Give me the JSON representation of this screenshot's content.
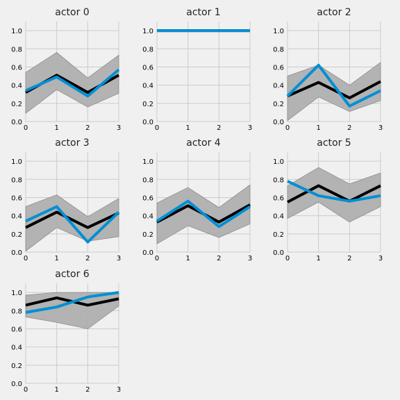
{
  "colors": {
    "background": "#f0f0f0",
    "mean_line": "#000000",
    "band": "#b0b0b0",
    "actual_line": "#008fd5",
    "grid": "#cbcbcb",
    "tick_text": "#000000"
  },
  "chart_data": [
    {
      "type": "line",
      "title": "actor 0",
      "x": [
        0,
        1,
        2,
        3
      ],
      "ylim": [
        0,
        1.1
      ],
      "xticks": [
        "0",
        "1",
        "2",
        "3"
      ],
      "yticks": [
        "0.0",
        "0.2",
        "0.4",
        "0.6",
        "0.8",
        "1.0"
      ],
      "grid": true,
      "band": {
        "lower": [
          0.09,
          0.35,
          0.16,
          0.31
        ],
        "upper": [
          0.54,
          0.76,
          0.48,
          0.73
        ]
      },
      "series": [
        {
          "role": "mean",
          "color": "#000000",
          "values": [
            0.32,
            0.51,
            0.32,
            0.51
          ]
        },
        {
          "role": "actual",
          "color": "#008fd5",
          "values": [
            0.34,
            0.49,
            0.28,
            0.57
          ]
        }
      ]
    },
    {
      "type": "line",
      "title": "actor 1",
      "x": [
        0,
        1,
        2,
        3
      ],
      "ylim": [
        0,
        1.1
      ],
      "xticks": [
        "0",
        "1",
        "2",
        "3"
      ],
      "yticks": [
        "0.0",
        "0.2",
        "0.4",
        "0.6",
        "0.8",
        "1.0"
      ],
      "grid": true,
      "band": {
        "lower": [
          1.0,
          1.0,
          1.0,
          1.0
        ],
        "upper": [
          1.0,
          1.0,
          1.0,
          1.0
        ]
      },
      "series": [
        {
          "role": "mean",
          "color": "#000000",
          "values": [
            1.0,
            1.0,
            1.0,
            1.0
          ]
        },
        {
          "role": "actual",
          "color": "#008fd5",
          "values": [
            1.0,
            1.0,
            1.0,
            1.0
          ]
        }
      ]
    },
    {
      "type": "line",
      "title": "actor 2",
      "x": [
        0,
        1,
        2,
        3
      ],
      "ylim": [
        0,
        1.1
      ],
      "xticks": [
        "0",
        "1",
        "2",
        "3"
      ],
      "yticks": [
        "0.0",
        "0.2",
        "0.4",
        "0.6",
        "0.8",
        "1.0"
      ],
      "grid": true,
      "band": {
        "lower": [
          0.01,
          0.27,
          0.11,
          0.23
        ],
        "upper": [
          0.5,
          0.62,
          0.4,
          0.65
        ]
      },
      "series": [
        {
          "role": "mean",
          "color": "#000000",
          "values": [
            0.28,
            0.43,
            0.26,
            0.44
          ]
        },
        {
          "role": "actual",
          "color": "#008fd5",
          "values": [
            0.28,
            0.62,
            0.17,
            0.34
          ]
        }
      ]
    },
    {
      "type": "line",
      "title": "actor 3",
      "x": [
        0,
        1,
        2,
        3
      ],
      "ylim": [
        0,
        1.1
      ],
      "xticks": [
        "0",
        "1",
        "2",
        "3"
      ],
      "yticks": [
        "0.0",
        "0.2",
        "0.4",
        "0.6",
        "0.8",
        "1.0"
      ],
      "grid": true,
      "band": {
        "lower": [
          0.01,
          0.27,
          0.12,
          0.17
        ],
        "upper": [
          0.5,
          0.63,
          0.39,
          0.59
        ]
      },
      "series": [
        {
          "role": "mean",
          "color": "#000000",
          "values": [
            0.27,
            0.44,
            0.27,
            0.43
          ]
        },
        {
          "role": "actual",
          "color": "#008fd5",
          "values": [
            0.34,
            0.5,
            0.11,
            0.44
          ]
        }
      ]
    },
    {
      "type": "line",
      "title": "actor 4",
      "x": [
        0,
        1,
        2,
        3
      ],
      "ylim": [
        0,
        1.1
      ],
      "xticks": [
        "0",
        "1",
        "2",
        "3"
      ],
      "yticks": [
        "0.0",
        "0.2",
        "0.4",
        "0.6",
        "0.8",
        "1.0"
      ],
      "grid": true,
      "band": {
        "lower": [
          0.09,
          0.29,
          0.16,
          0.31
        ],
        "upper": [
          0.54,
          0.71,
          0.49,
          0.74
        ]
      },
      "series": [
        {
          "role": "mean",
          "color": "#000000",
          "values": [
            0.33,
            0.51,
            0.33,
            0.52
          ]
        },
        {
          "role": "actual",
          "color": "#008fd5",
          "values": [
            0.34,
            0.56,
            0.28,
            0.5
          ]
        }
      ]
    },
    {
      "type": "line",
      "title": "actor 5",
      "x": [
        0,
        1,
        2,
        3
      ],
      "ylim": [
        0,
        1.1
      ],
      "xticks": [
        "0",
        "1",
        "2",
        "3"
      ],
      "yticks": [
        "0.0",
        "0.2",
        "0.4",
        "0.6",
        "0.8",
        "1.0"
      ],
      "grid": true,
      "band": {
        "lower": [
          0.37,
          0.55,
          0.33,
          0.5
        ],
        "upper": [
          0.73,
          0.93,
          0.75,
          0.87
        ]
      },
      "series": [
        {
          "role": "mean",
          "color": "#000000",
          "values": [
            0.55,
            0.73,
            0.56,
            0.73
          ]
        },
        {
          "role": "actual",
          "color": "#008fd5",
          "values": [
            0.78,
            0.62,
            0.56,
            0.62
          ]
        }
      ]
    },
    {
      "type": "line",
      "title": "actor 6",
      "x": [
        0,
        1,
        2,
        3
      ],
      "ylim": [
        0,
        1.1
      ],
      "xticks": [
        "0",
        "1",
        "2",
        "3"
      ],
      "yticks": [
        "0.0",
        "0.2",
        "0.4",
        "0.6",
        "0.8",
        "1.0"
      ],
      "grid": true,
      "band": {
        "lower": [
          0.73,
          0.67,
          0.6,
          0.85
        ],
        "upper": [
          0.97,
          1.0,
          1.0,
          1.0
        ]
      },
      "series": [
        {
          "role": "mean",
          "color": "#000000",
          "values": [
            0.86,
            0.94,
            0.86,
            0.93
          ]
        },
        {
          "role": "actual",
          "color": "#008fd5",
          "values": [
            0.78,
            0.84,
            0.95,
            1.0
          ]
        }
      ]
    }
  ]
}
